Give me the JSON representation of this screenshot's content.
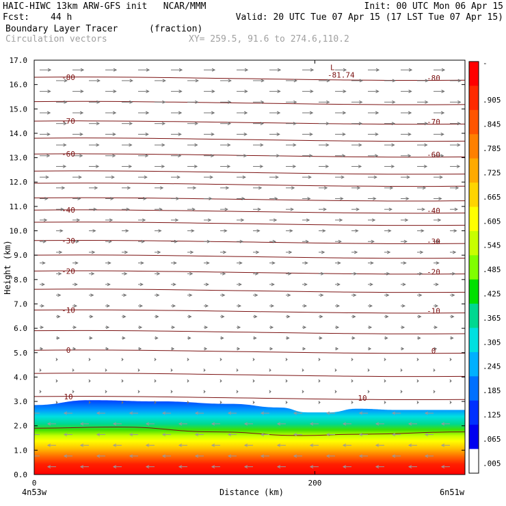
{
  "header": {
    "title": "HAIC-HIWC 13km ARW-GFS init   NCAR/MMM",
    "init": "Init: 00 UTC Mon 06 Apr 15",
    "fcst_label": "Fcst:",
    "fcst_value": "44 h",
    "valid": "Valid: 20 UTC Tue 07 Apr 15 (17 LST Tue 07 Apr 15)",
    "field_name": "Boundary Layer Tracer",
    "field_units": "(fraction)",
    "vectors_label": "Circulation vectors",
    "xy_label": "XY= 259.5, 91.6 to 274.6,110.2"
  },
  "chart_data": {
    "type": "heatmap",
    "xlabel": "Distance (km)",
    "ylabel": "Height (km)",
    "xlim": [
      0,
      307
    ],
    "ylim": [
      0,
      17
    ],
    "x_ticks": [
      0,
      200
    ],
    "x_tick_labels": [
      "0",
      "200"
    ],
    "y_ticks": [
      0,
      1,
      2,
      3,
      4,
      5,
      6,
      7,
      8,
      9,
      10,
      11,
      12,
      13,
      14,
      15,
      16,
      17
    ],
    "y_tick_labels": [
      "0.0",
      "1.0",
      "2.0",
      "3.0",
      "4.0",
      "5.0",
      "6.0",
      "7.0",
      "8.0",
      "9.0",
      "10.0",
      "11.0",
      "12.0",
      "13.0",
      "14.0",
      "15.0",
      "16.0",
      "17.0"
    ],
    "x_end_labels": [
      "4n53w",
      "6n51w"
    ],
    "colorbar": {
      "labels": [
        "-",
        ".905",
        ".845",
        ".785",
        ".725",
        ".665",
        ".605",
        ".545",
        ".485",
        ".425",
        ".365",
        ".305",
        ".245",
        ".185",
        ".125",
        ".065",
        ".005"
      ],
      "colors": [
        "#ff0000",
        "#ff2a00",
        "#ff5500",
        "#ff8000",
        "#ffaa00",
        "#ffd400",
        "#ffff00",
        "#c8ff00",
        "#80ff00",
        "#00e000",
        "#00d890",
        "#00e0e0",
        "#00b0ff",
        "#0070ff",
        "#0030ff",
        "#0000f0",
        "#ffffff"
      ]
    },
    "contour_levels": [
      {
        "label": "-80",
        "y": 16.3
      },
      {
        "label": "-70",
        "y": 14.5
      },
      {
        "label": "-60",
        "y": 13.15
      },
      {
        "label": "-40",
        "y": 10.85
      },
      {
        "label": "-30",
        "y": 9.6
      },
      {
        "label": "-20",
        "y": 8.35
      },
      {
        "label": "-10",
        "y": 6.75
      },
      {
        "label": "0",
        "y": 5.1
      },
      {
        "label": "10",
        "y": 3.2
      }
    ],
    "extra_contour_heights": [
      15.3,
      13.8,
      12.45,
      11.95,
      11.35,
      10.35,
      9.0,
      7.6,
      5.9,
      4.15
    ],
    "min_label": "L",
    "min_value": "-81.74",
    "min_position": [
      210,
      16.6
    ],
    "tracer_top": [
      {
        "x": 0,
        "y": 2.85
      },
      {
        "x": 40,
        "y": 3.05
      },
      {
        "x": 90,
        "y": 3.0
      },
      {
        "x": 140,
        "y": 2.9
      },
      {
        "x": 175,
        "y": 2.75
      },
      {
        "x": 195,
        "y": 2.55
      },
      {
        "x": 210,
        "y": 2.55
      },
      {
        "x": 230,
        "y": 2.7
      },
      {
        "x": 260,
        "y": 2.65
      },
      {
        "x": 307,
        "y": 2.65
      }
    ],
    "tracer_inner": [
      {
        "x": 0,
        "y": 1.9
      },
      {
        "x": 60,
        "y": 1.95
      },
      {
        "x": 130,
        "y": 1.75
      },
      {
        "x": 190,
        "y": 1.6
      },
      {
        "x": 230,
        "y": 1.65
      },
      {
        "x": 307,
        "y": 1.75
      }
    ]
  }
}
